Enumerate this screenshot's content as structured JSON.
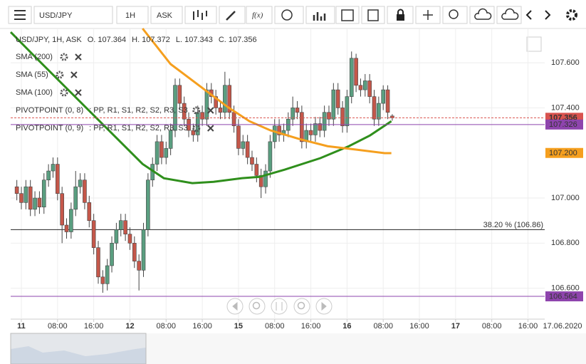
{
  "toolbar": {
    "symbol": "USD/JPY",
    "timeframe": "1H",
    "side": "ASK",
    "fx": "f(x)"
  },
  "chart_data": {
    "type": "candlestick",
    "header": "USD/JPY, 1H, ASK",
    "ohlc_keys": [
      "O.",
      "H.",
      "L.",
      "C."
    ],
    "x": [
      -1,
      0,
      1,
      2,
      3,
      4,
      5,
      6,
      7,
      8,
      9,
      10,
      11,
      12,
      13,
      14,
      15,
      16,
      17,
      18,
      19,
      20,
      21,
      22,
      23,
      24,
      25,
      26,
      27,
      28,
      29,
      30,
      31,
      32,
      33,
      34,
      35,
      36,
      37,
      38,
      39,
      40,
      41,
      42,
      43,
      44,
      45,
      46,
      47,
      48,
      49,
      50,
      51,
      52,
      53,
      54,
      55,
      56,
      57,
      58,
      59,
      60,
      61,
      62,
      63,
      64,
      65,
      66,
      67,
      68,
      69,
      70,
      71,
      72,
      73,
      74,
      75,
      76,
      77,
      78,
      79,
      80,
      81,
      82
    ],
    "open": [
      107.05,
      107.02,
      106.98,
      107.05,
      106.95,
      107,
      106.96,
      107.08,
      107.12,
      107.15,
      107.02,
      106.88,
      106.85,
      106.95,
      107.05,
      107.08,
      106.98,
      106.9,
      106.78,
      106.65,
      106.62,
      106.7,
      106.8,
      106.86,
      106.9,
      106.84,
      106.8,
      106.72,
      106.68,
      106.86,
      107.08,
      107.15,
      107.25,
      107.18,
      107.22,
      107.3,
      107.5,
      107.42,
      107.35,
      107.3,
      107.28,
      107.38,
      107.35,
      107.48,
      107.45,
      107.4,
      107.38,
      107.5,
      107.38,
      107.32,
      107.22,
      107.25,
      107.18,
      107.15,
      107.1,
      107.05,
      107.12,
      107.25,
      107.32,
      107.28,
      107.3,
      107.35,
      107.4,
      107.38,
      107.25,
      107.3,
      107.28,
      107.33,
      107.3,
      107.38,
      107.35,
      107.48,
      107.4,
      107.32,
      107.45,
      107.62,
      107.5,
      107.48,
      107.52,
      107.45,
      107.35,
      107.42,
      107.48,
      107.364
    ],
    "high": [
      107.08,
      107.05,
      107.08,
      107.08,
      107.03,
      107.03,
      107.11,
      107.15,
      107.18,
      107.18,
      107.05,
      106.91,
      106.98,
      107.12,
      107.11,
      107.11,
      107.01,
      106.93,
      106.81,
      106.68,
      106.73,
      106.83,
      106.89,
      106.93,
      106.93,
      106.87,
      106.83,
      106.75,
      106.89,
      107.11,
      107.18,
      107.28,
      107.28,
      107.25,
      107.33,
      107.53,
      107.53,
      107.45,
      107.38,
      107.33,
      107.41,
      107.41,
      107.51,
      107.51,
      107.48,
      107.43,
      107.56,
      107.53,
      107.41,
      107.35,
      107.28,
      107.28,
      107.21,
      107.18,
      107.13,
      107.15,
      107.28,
      107.35,
      107.35,
      107.33,
      107.38,
      107.45,
      107.43,
      107.41,
      107.33,
      107.33,
      107.36,
      107.36,
      107.41,
      107.41,
      107.51,
      107.51,
      107.43,
      107.48,
      107.65,
      107.64,
      107.53,
      107.55,
      107.55,
      107.48,
      107.45,
      107.5,
      107.5,
      107.372
    ],
    "low": [
      106.99,
      106.95,
      106.95,
      106.92,
      106.92,
      106.93,
      106.93,
      107.05,
      107.09,
      106.99,
      106.8,
      106.82,
      106.82,
      106.92,
      107.02,
      106.95,
      106.87,
      106.75,
      106.62,
      106.58,
      106.59,
      106.67,
      106.77,
      106.83,
      106.81,
      106.77,
      106.69,
      106.59,
      106.65,
      106.83,
      107.05,
      107.12,
      107.15,
      107.15,
      107.19,
      107.27,
      107.39,
      107.32,
      107.27,
      107.25,
      107.25,
      107.32,
      107.32,
      107.42,
      107.37,
      107.35,
      107.35,
      107.35,
      107.29,
      107.19,
      107.19,
      107.15,
      107.12,
      107.07,
      107,
      107.02,
      107.09,
      107.22,
      107.25,
      107.25,
      107.27,
      107.32,
      107.35,
      107.22,
      107.22,
      107.25,
      107.25,
      107.27,
      107.27,
      107.32,
      107.32,
      107.37,
      107.29,
      107.29,
      107.42,
      107.47,
      107.45,
      107.45,
      107.42,
      107.32,
      107.32,
      107.39,
      107.35,
      107.343
    ],
    "close": [
      107.02,
      106.98,
      107.05,
      106.95,
      107,
      106.96,
      107.08,
      107.12,
      107.15,
      107.02,
      106.88,
      106.85,
      106.95,
      107.05,
      107.08,
      106.98,
      106.9,
      106.78,
      106.65,
      106.62,
      106.7,
      106.8,
      106.86,
      106.9,
      106.84,
      106.8,
      106.72,
      106.68,
      106.86,
      107.08,
      107.15,
      107.25,
      107.18,
      107.22,
      107.3,
      107.5,
      107.42,
      107.35,
      107.3,
      107.28,
      107.38,
      107.35,
      107.48,
      107.45,
      107.4,
      107.38,
      107.5,
      107.38,
      107.32,
      107.22,
      107.25,
      107.18,
      107.15,
      107.1,
      107.05,
      107.12,
      107.25,
      107.32,
      107.28,
      107.3,
      107.35,
      107.4,
      107.38,
      107.25,
      107.3,
      107.28,
      107.33,
      107.3,
      107.38,
      107.35,
      107.48,
      107.4,
      107.32,
      107.45,
      107.62,
      107.5,
      107.48,
      107.52,
      107.45,
      107.35,
      107.42,
      107.48,
      107.38,
      107.356
    ],
    "up_color": "#5a9e80",
    "down_color": "#c4574a",
    "series": [
      {
        "name": "SMA (200)",
        "color": "#b03030",
        "x": [],
        "values": []
      },
      {
        "name": "SMA (55)",
        "color": "#2f8f1c",
        "x": [
          -2.36,
          3.1,
          11,
          18.9,
          26.8,
          31.5,
          37.8,
          42.5,
          48.8,
          52.7,
          58.2,
          66.1,
          72.4,
          77.1,
          81.8
        ],
        "values": [
          107.736,
          107.625,
          107.467,
          107.309,
          107.151,
          107.088,
          107.066,
          107.072,
          107.088,
          107.094,
          107.126,
          107.177,
          107.23,
          107.278,
          107.341
        ]
      },
      {
        "name": "SMA (100)",
        "color": "#f59f1e",
        "x": [
          26.8,
          33,
          39.3,
          45.6,
          50.4,
          55.1,
          61.4,
          67.7,
          74,
          80.3,
          81.8
        ],
        "values": [
          107.752,
          107.594,
          107.499,
          107.404,
          107.341,
          107.3,
          107.262,
          107.23,
          107.215,
          107.199,
          107.199
        ]
      }
    ],
    "pivots": [
      {
        "name": "PIVOTPOINT (0, 8)",
        "levels": ": PP, R1, S1, R2, S2, R3, S3",
        "color": "#b0309a"
      },
      {
        "name": "PIVOTPOINT (0, 9)",
        "levels": ": PP, R1, S1, R2, S2, R3, S3",
        "color": "#8a3ac0"
      }
    ],
    "levels": [
      {
        "value": 107.356,
        "label": "107.356",
        "color": "#d9534f",
        "dash": true
      },
      {
        "value": 107.326,
        "label": "107.326",
        "color": "#8e44ad"
      },
      {
        "value": 107.2,
        "label": "107.200",
        "color": "#f59f1e",
        "line": false
      },
      {
        "value": 106.564,
        "label": "106.564",
        "color": "#8e44ad"
      }
    ],
    "fib": {
      "value": 106.86,
      "label": "38.20 % (106.86)"
    },
    "xlim": [
      -2.36,
      115.7
    ],
    "ylim": [
      106.463,
      107.752
    ],
    "yticks": [
      {
        "value": 106.6,
        "label": "106.600"
      },
      {
        "value": 106.8,
        "label": "106.800"
      },
      {
        "value": 107,
        "label": "107.000"
      },
      {
        "value": 107.4,
        "label": "107.400"
      },
      {
        "value": 107.6,
        "label": "107.600"
      }
    ],
    "xticks": [
      {
        "value": 0,
        "label": "11"
      },
      {
        "value": 8,
        "label": "08:00"
      },
      {
        "value": 16,
        "label": "16:00"
      },
      {
        "value": 24,
        "label": "12"
      },
      {
        "value": 32,
        "label": "08:00"
      },
      {
        "value": 40,
        "label": "16:00"
      },
      {
        "value": 48,
        "label": "15"
      },
      {
        "value": 56,
        "label": "08:00"
      },
      {
        "value": 64,
        "label": "16:00"
      },
      {
        "value": 72,
        "label": "16"
      },
      {
        "value": 80,
        "label": "08:00"
      },
      {
        "value": 88,
        "label": "16:00"
      },
      {
        "value": 96,
        "label": "17"
      },
      {
        "value": 104,
        "label": "08:00"
      },
      {
        "value": 112,
        "label": "16:00"
      }
    ],
    "end_date": "17.06.2020",
    "grid": true
  }
}
